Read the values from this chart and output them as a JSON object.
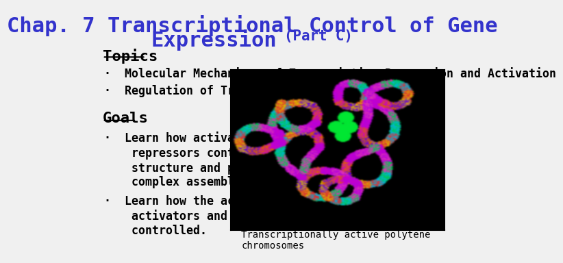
{
  "background_color": "#f0f0f0",
  "title_line1": "Chap. 7 Transcriptional Control of Gene",
  "title_line2": "Expression",
  "title_part": "(Part C)",
  "title_color": "#3333cc",
  "title_fontsize": 22,
  "section1_header": "Topics",
  "section1_header_fontsize": 16,
  "topic_bullets": [
    "Molecular Mechanisms of Transcription Repression and Activation",
    "Regulation of Transcription Factor Activity"
  ],
  "topic_fontsize": 12,
  "section2_header": "Goals",
  "section2_header_fontsize": 16,
  "goal_bullets": [
    "Learn how activators &\nrepressors control chromatin\nstructure and pre-initiation\ncomplex assembly.",
    "Learn how the activities of\nactivators and repressors are\ncontrolled."
  ],
  "goal_fontsize": 12,
  "image_caption": "Transcriptionally active polytene\nchromosomes",
  "image_caption_fontsize": 10,
  "bullet_char": "·",
  "body_color": "#000000",
  "title_color2": "#3333cc",
  "font_family": "monospace"
}
